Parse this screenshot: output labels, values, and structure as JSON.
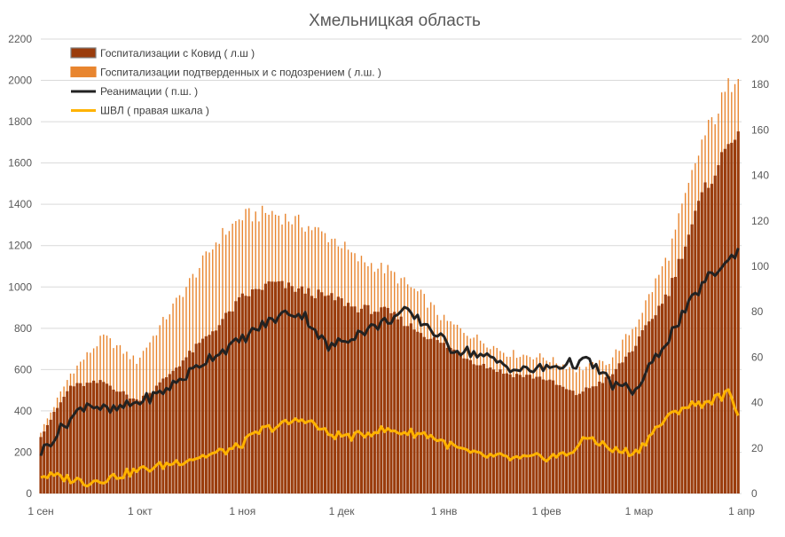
{
  "chart_data": {
    "type": "bar",
    "title": "Хмельницкая область",
    "x_ticks": [
      "1 сен",
      "1 окт",
      "1 ноя",
      "1 дек",
      "1 янв",
      "1 фев",
      "1 мар",
      "1 апр"
    ],
    "x_range": [
      "2020-09-01",
      "2021-04-01"
    ],
    "y_left": {
      "min": 0,
      "max": 2200,
      "ticks": [
        0,
        200,
        400,
        600,
        800,
        1000,
        1200,
        1400,
        1600,
        1800,
        2000,
        2200
      ]
    },
    "y_right": {
      "min": 0,
      "max": 200,
      "ticks": [
        0,
        20,
        40,
        60,
        80,
        100,
        120,
        140,
        160,
        180,
        200
      ]
    },
    "grid": true,
    "legend_position": "top-left",
    "colors": {
      "covid_bars": "#9a3c0c",
      "suspected_bars": "#e8852f",
      "icu_line": "#222222",
      "ventilation_line": "#ffb300",
      "grid": "#d9d9d9"
    },
    "series": [
      {
        "name": "Госпитализации с Ковид ( л.ш )",
        "kind": "bar",
        "axis": "left",
        "anchor_dates": [
          "2020-09-01",
          "2020-09-10",
          "2020-09-20",
          "2020-09-30",
          "2020-10-05",
          "2020-10-15",
          "2020-10-25",
          "2020-11-01",
          "2020-11-10",
          "2020-11-20",
          "2020-11-30",
          "2020-12-05",
          "2020-12-15",
          "2020-12-25",
          "2021-01-01",
          "2021-01-10",
          "2021-01-20",
          "2021-01-31",
          "2021-02-10",
          "2021-02-20",
          "2021-02-28",
          "2021-03-10",
          "2021-03-20",
          "2021-03-31"
        ],
        "anchor_values": [
          280,
          520,
          540,
          450,
          500,
          660,
          820,
          950,
          1020,
          980,
          940,
          900,
          880,
          780,
          720,
          640,
          580,
          560,
          480,
          560,
          720,
          980,
          1440,
          1780
        ]
      },
      {
        "name": "Госпитализации подтверденных и с подозрением ( л.ш. )",
        "kind": "bar",
        "axis": "left",
        "anchor_dates": [
          "2020-09-01",
          "2020-09-10",
          "2020-09-20",
          "2020-09-30",
          "2020-10-05",
          "2020-10-15",
          "2020-10-25",
          "2020-11-01",
          "2020-11-10",
          "2020-11-20",
          "2020-11-30",
          "2020-12-05",
          "2020-12-15",
          "2020-12-25",
          "2021-01-01",
          "2021-01-10",
          "2021-01-20",
          "2021-01-31",
          "2021-02-10",
          "2021-02-20",
          "2021-02-28",
          "2021-03-10",
          "2021-03-20",
          "2021-03-31"
        ],
        "anchor_values": [
          300,
          580,
          760,
          640,
          760,
          1000,
          1240,
          1340,
          1360,
          1300,
          1220,
          1140,
          1080,
          960,
          840,
          760,
          680,
          660,
          600,
          640,
          820,
          1160,
          1700,
          2060
        ]
      },
      {
        "name": "Реанимации ( п.ш. )",
        "kind": "line",
        "axis": "right",
        "anchor_dates": [
          "2020-09-01",
          "2020-09-08",
          "2020-09-15",
          "2020-09-22",
          "2020-09-30",
          "2020-10-07",
          "2020-10-15",
          "2020-10-22",
          "2020-10-30",
          "2020-11-07",
          "2020-11-15",
          "2020-11-20",
          "2020-11-27",
          "2020-12-05",
          "2020-12-12",
          "2020-12-20",
          "2020-12-27",
          "2021-01-03",
          "2021-01-10",
          "2021-01-17",
          "2021-01-24",
          "2021-01-31",
          "2021-02-07",
          "2021-02-14",
          "2021-02-21",
          "2021-02-28",
          "2021-03-07",
          "2021-03-14",
          "2021-03-21",
          "2021-03-28",
          "2021-03-31"
        ],
        "anchor_values": [
          18,
          30,
          40,
          36,
          40,
          44,
          52,
          60,
          66,
          74,
          80,
          78,
          64,
          70,
          74,
          80,
          74,
          64,
          62,
          58,
          54,
          55,
          57,
          58,
          48,
          45,
          62,
          78,
          94,
          102,
          108
        ]
      },
      {
        "name": "ШВЛ ( правая шкала )",
        "kind": "line",
        "axis": "right",
        "anchor_dates": [
          "2020-09-01",
          "2020-09-08",
          "2020-09-15",
          "2020-09-22",
          "2020-09-30",
          "2020-10-07",
          "2020-10-15",
          "2020-10-22",
          "2020-10-30",
          "2020-11-07",
          "2020-11-15",
          "2020-11-20",
          "2020-11-27",
          "2020-12-05",
          "2020-12-12",
          "2020-12-20",
          "2020-12-27",
          "2021-01-03",
          "2021-01-10",
          "2021-01-17",
          "2021-01-24",
          "2021-01-31",
          "2021-02-07",
          "2021-02-14",
          "2021-02-21",
          "2021-02-28",
          "2021-03-07",
          "2021-03-14",
          "2021-03-21",
          "2021-03-28",
          "2021-03-31"
        ],
        "anchor_values": [
          8,
          7,
          5,
          7,
          10,
          12,
          15,
          17,
          20,
          28,
          31,
          33,
          26,
          25,
          28,
          27,
          26,
          21,
          17,
          16,
          15,
          16,
          17,
          25,
          19,
          18,
          30,
          38,
          40,
          44,
          36
        ]
      }
    ]
  }
}
